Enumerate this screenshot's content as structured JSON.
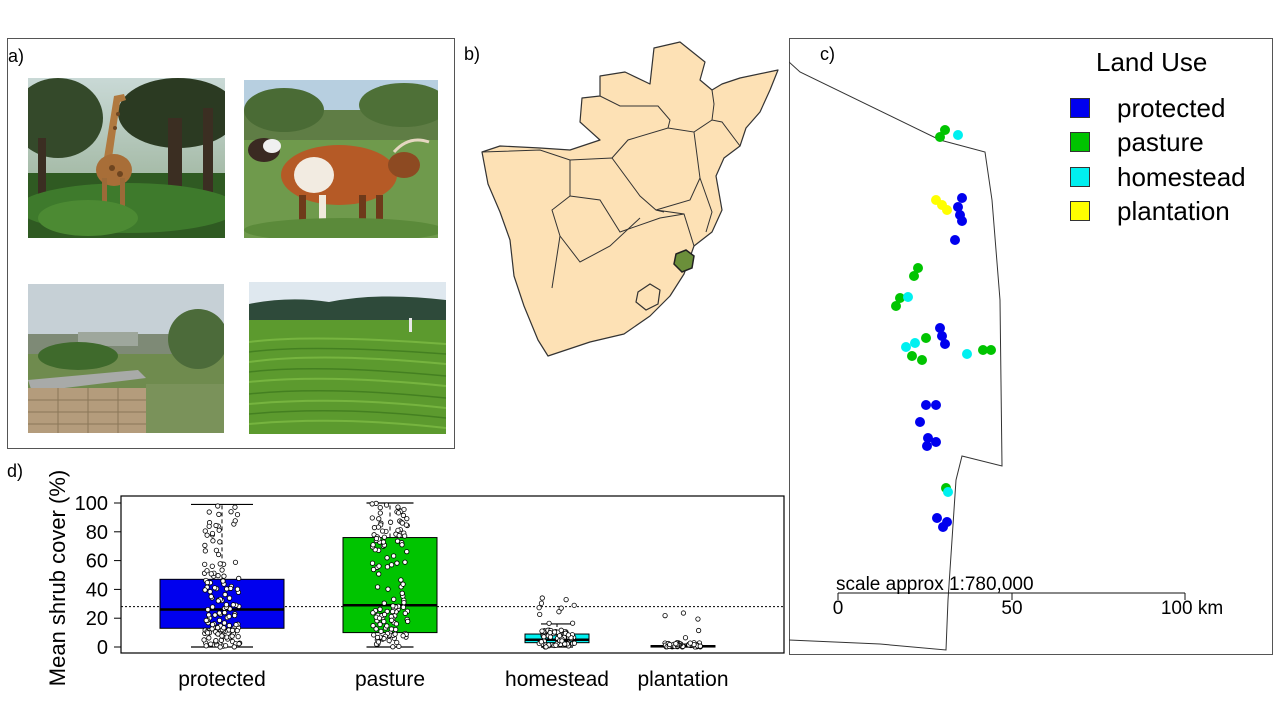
{
  "panels": {
    "a": {
      "label": "a)"
    },
    "b": {
      "label": "b)"
    },
    "c": {
      "label": "c)"
    },
    "d": {
      "label": "d)"
    }
  },
  "photos": [
    {
      "name": "giraffe-photo",
      "subject": "giraffe among trees"
    },
    {
      "name": "cattle-photo",
      "subject": "cattle on pasture"
    },
    {
      "name": "homestead-photo",
      "subject": "brick homestead"
    },
    {
      "name": "plantation-photo",
      "subject": "sugarcane plantation"
    }
  ],
  "map_b": {
    "highlight_color": "#6b8f3a",
    "land_color": "#fde1b5"
  },
  "map_c": {
    "legend": {
      "title": "Land Use",
      "items": [
        {
          "label": "protected",
          "color": "#0000ee"
        },
        {
          "label": "pasture",
          "color": "#00c400"
        },
        {
          "label": "homestead",
          "color": "#00f0f0"
        },
        {
          "label": "plantation",
          "color": "#ffff00"
        }
      ]
    },
    "scale": {
      "text": "scale approx 1:780,000",
      "ticks": [
        "0",
        "50",
        "100 km"
      ]
    }
  },
  "chart_data": {
    "type": "box",
    "ylabel": "Mean shrub cover (%)",
    "categories": [
      "protected",
      "pasture",
      "homestead",
      "plantation"
    ],
    "colors": [
      "#0000ee",
      "#00c400",
      "#00f0f0",
      "#e0e000"
    ],
    "yticks": [
      "0",
      "20",
      "40",
      "60",
      "80",
      "100"
    ],
    "ylim": [
      0,
      100
    ],
    "reference_line": 28,
    "boxes": [
      {
        "category": "protected",
        "whisker_low": 0,
        "q1": 13,
        "median": 26,
        "q3": 47,
        "whisker_high": 99
      },
      {
        "category": "pasture",
        "whisker_low": 0,
        "q1": 10,
        "median": 29,
        "q3": 76,
        "whisker_high": 100
      },
      {
        "category": "homestead",
        "whisker_low": 0,
        "q1": 3,
        "median": 5,
        "q3": 9,
        "whisker_high": 16
      },
      {
        "category": "plantation",
        "whisker_low": 0,
        "q1": 0,
        "median": 0.5,
        "q3": 1,
        "whisker_high": 2
      }
    ]
  }
}
